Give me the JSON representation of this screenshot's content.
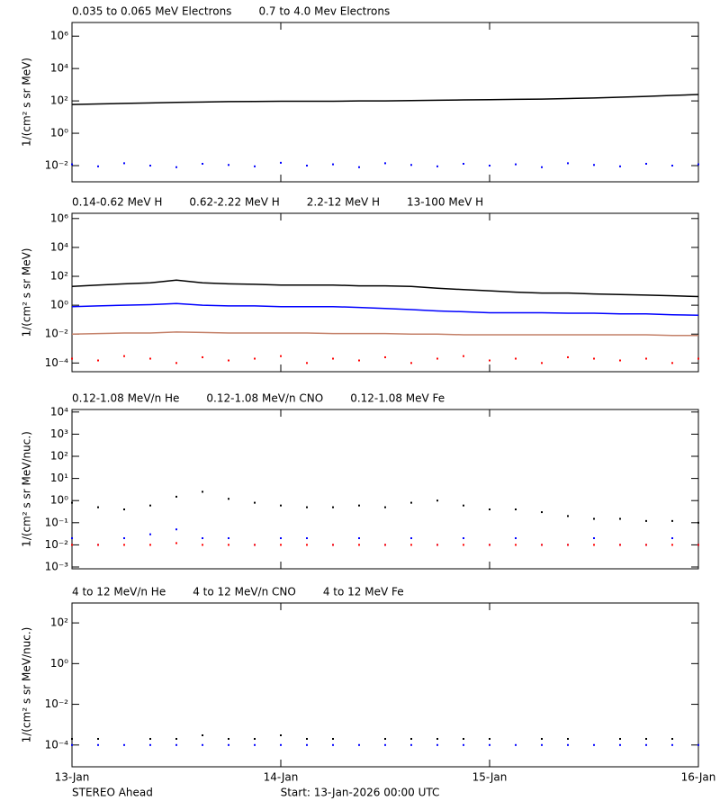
{
  "x_axis": {
    "xlim": [
      "2026-01-13T00:00",
      "2026-01-16T00:00"
    ],
    "xticks": [
      {
        "value": "2026-01-13T00:00",
        "label": "13-Jan"
      },
      {
        "value": "2026-01-14T00:00",
        "label": "14-Jan"
      },
      {
        "value": "2026-01-15T00:00",
        "label": "15-Jan"
      },
      {
        "value": "2026-01-16T00:00",
        "label": "16-Jan"
      }
    ]
  },
  "footer": {
    "left": "STEREO Ahead",
    "center": "Start: 13-Jan-2026 00:00 UTC"
  },
  "chart_data": [
    {
      "type": "line",
      "y_label": "1/(cm² s sr MeV)",
      "log_y": true,
      "ylim": [
        0.001,
        7000000
      ],
      "yticks": [
        {
          "value": 0.01,
          "label": "10⁻²"
        },
        {
          "value": 1,
          "label": "10⁰"
        },
        {
          "value": 100,
          "label": "10²"
        },
        {
          "value": 10000,
          "label": "10⁴"
        },
        {
          "value": 1000000,
          "label": "10⁶"
        }
      ],
      "x": [
        "2026-01-13T00:00",
        "2026-01-13T03:00",
        "2026-01-13T06:00",
        "2026-01-13T09:00",
        "2026-01-13T12:00",
        "2026-01-13T15:00",
        "2026-01-13T18:00",
        "2026-01-13T21:00",
        "2026-01-14T00:00",
        "2026-01-14T03:00",
        "2026-01-14T06:00",
        "2026-01-14T09:00",
        "2026-01-14T12:00",
        "2026-01-14T15:00",
        "2026-01-14T18:00",
        "2026-01-14T21:00",
        "2026-01-15T00:00",
        "2026-01-15T03:00",
        "2026-01-15T06:00",
        "2026-01-15T09:00",
        "2026-01-15T12:00",
        "2026-01-15T15:00",
        "2026-01-15T18:00",
        "2026-01-15T21:00",
        "2026-01-16T00:00"
      ],
      "series": [
        {
          "name": "0.035 to 0.065 MeV Electrons",
          "color": "#000000",
          "style": "line",
          "values": [
            60,
            65,
            70,
            75,
            80,
            85,
            90,
            92,
            95,
            95,
            95,
            100,
            100,
            105,
            110,
            115,
            120,
            125,
            130,
            140,
            150,
            170,
            190,
            220,
            250
          ]
        },
        {
          "name": "0.7 to 4.0 Mev Electrons",
          "color": "#0000ff",
          "style": "points",
          "values": [
            0.012,
            0.009,
            0.014,
            0.01,
            0.008,
            0.013,
            0.011,
            0.009,
            0.015,
            0.01,
            0.012,
            0.008,
            0.014,
            0.011,
            0.009,
            0.013,
            0.01,
            0.012,
            0.008,
            0.014,
            0.011,
            0.009,
            0.013,
            0.01,
            0.012
          ]
        }
      ]
    },
    {
      "type": "line",
      "y_label": "1/(cm² s sr MeV)",
      "log_y": true,
      "ylim": [
        2.5e-05,
        2300000
      ],
      "yticks": [
        {
          "value": 0.0001,
          "label": "10⁻⁴"
        },
        {
          "value": 0.01,
          "label": "10⁻²"
        },
        {
          "value": 1,
          "label": "10⁰"
        },
        {
          "value": 100,
          "label": "10²"
        },
        {
          "value": 10000,
          "label": "10⁴"
        },
        {
          "value": 1000000,
          "label": "10⁶"
        }
      ],
      "x": [
        "2026-01-13T00:00",
        "2026-01-13T03:00",
        "2026-01-13T06:00",
        "2026-01-13T09:00",
        "2026-01-13T12:00",
        "2026-01-13T15:00",
        "2026-01-13T18:00",
        "2026-01-13T21:00",
        "2026-01-14T00:00",
        "2026-01-14T03:00",
        "2026-01-14T06:00",
        "2026-01-14T09:00",
        "2026-01-14T12:00",
        "2026-01-14T15:00",
        "2026-01-14T18:00",
        "2026-01-14T21:00",
        "2026-01-15T00:00",
        "2026-01-15T03:00",
        "2026-01-15T06:00",
        "2026-01-15T09:00",
        "2026-01-15T12:00",
        "2026-01-15T15:00",
        "2026-01-15T18:00",
        "2026-01-15T21:00",
        "2026-01-16T00:00"
      ],
      "series": [
        {
          "name": "0.14-0.62 MeV H",
          "color": "#000000",
          "style": "line",
          "values": [
            20,
            25,
            30,
            35,
            55,
            35,
            30,
            28,
            25,
            25,
            25,
            22,
            22,
            20,
            15,
            12,
            10,
            8,
            7,
            7,
            6,
            5.5,
            5,
            4.5,
            4
          ]
        },
        {
          "name": "0.62-2.22 MeV H",
          "color": "#0000ff",
          "style": "line",
          "values": [
            0.8,
            0.9,
            1.0,
            1.1,
            1.3,
            1.0,
            0.9,
            0.9,
            0.8,
            0.8,
            0.8,
            0.7,
            0.6,
            0.5,
            0.4,
            0.35,
            0.3,
            0.3,
            0.3,
            0.28,
            0.28,
            0.25,
            0.25,
            0.22,
            0.2
          ]
        },
        {
          "name": "2.2-12 MeV H",
          "color": "#c48068",
          "style": "line",
          "values": [
            0.01,
            0.011,
            0.012,
            0.012,
            0.014,
            0.013,
            0.012,
            0.012,
            0.012,
            0.012,
            0.011,
            0.011,
            0.011,
            0.01,
            0.01,
            0.009,
            0.009,
            0.009,
            0.009,
            0.009,
            0.009,
            0.009,
            0.009,
            0.008,
            0.008
          ]
        },
        {
          "name": "13-100 MeV H",
          "color": "#ff0000",
          "style": "points",
          "values": [
            0.0002,
            0.00015,
            0.0003,
            0.0002,
            0.0001,
            0.00025,
            0.00015,
            0.0002,
            0.0003,
            0.0001,
            0.0002,
            0.00015,
            0.00025,
            0.0001,
            0.0002,
            0.0003,
            0.00015,
            0.0002,
            0.0001,
            0.00025,
            0.0002,
            0.00015,
            0.0002,
            0.0001,
            0.0002
          ]
        }
      ]
    },
    {
      "type": "line",
      "y_label": "1/(cm² s sr MeV/nuc.)",
      "log_y": true,
      "ylim": [
        0.00083,
        13000
      ],
      "yticks": [
        {
          "value": 0.001,
          "label": "10⁻³"
        },
        {
          "value": 0.01,
          "label": "10⁻²"
        },
        {
          "value": 0.1,
          "label": "10⁻¹"
        },
        {
          "value": 1,
          "label": "10⁰"
        },
        {
          "value": 10,
          "label": "10¹"
        },
        {
          "value": 100,
          "label": "10²"
        },
        {
          "value": 1000,
          "label": "10³"
        },
        {
          "value": 10000,
          "label": "10⁴"
        }
      ],
      "x": [
        "2026-01-13T00:00",
        "2026-01-13T03:00",
        "2026-01-13T06:00",
        "2026-01-13T09:00",
        "2026-01-13T12:00",
        "2026-01-13T15:00",
        "2026-01-13T18:00",
        "2026-01-13T21:00",
        "2026-01-14T00:00",
        "2026-01-14T03:00",
        "2026-01-14T06:00",
        "2026-01-14T09:00",
        "2026-01-14T12:00",
        "2026-01-14T15:00",
        "2026-01-14T18:00",
        "2026-01-14T21:00",
        "2026-01-15T00:00",
        "2026-01-15T03:00",
        "2026-01-15T06:00",
        "2026-01-15T09:00",
        "2026-01-15T12:00",
        "2026-01-15T15:00",
        "2026-01-15T18:00",
        "2026-01-15T21:00",
        "2026-01-16T00:00"
      ],
      "series": [
        {
          "name": "0.12-1.08 MeV/n He",
          "color": "#000000",
          "style": "points",
          "values": [
            0.8,
            0.5,
            0.4,
            0.6,
            1.5,
            2.5,
            1.2,
            0.8,
            0.6,
            0.5,
            0.5,
            0.6,
            0.5,
            0.8,
            1.0,
            0.6,
            0.4,
            0.4,
            0.3,
            0.2,
            0.15,
            0.15,
            0.12,
            0.12,
            0.1
          ]
        },
        {
          "name": "0.12-1.08 MeV/n CNO",
          "color": "#0000ff",
          "style": "points",
          "values": [
            0.02,
            0.01,
            0.02,
            0.03,
            0.05,
            0.02,
            0.02,
            0.01,
            0.02,
            0.02,
            0.01,
            0.02,
            0.01,
            0.02,
            0.01,
            0.02,
            0.01,
            0.02,
            0.01,
            0.01,
            0.02,
            0.01,
            0.01,
            0.02,
            0.01
          ]
        },
        {
          "name": "0.12-1.08 MeV Fe",
          "color": "#ff0000",
          "style": "points",
          "values": [
            0.01,
            0.01,
            0.01,
            0.01,
            0.012,
            0.01,
            0.01,
            0.01,
            0.01,
            0.01,
            0.01,
            0.01,
            0.01,
            0.01,
            0.01,
            0.01,
            0.01,
            0.01,
            0.01,
            0.01,
            0.01,
            0.01,
            0.01,
            0.01,
            0.01
          ]
        }
      ]
    },
    {
      "type": "line",
      "y_label": "1/(cm² s sr MeV/nuc.)",
      "log_y": true,
      "ylim": [
        8.5e-06,
        950
      ],
      "yticks": [
        {
          "value": 0.0001,
          "label": "10⁻⁴"
        },
        {
          "value": 0.01,
          "label": "10⁻²"
        },
        {
          "value": 1,
          "label": "10⁰"
        },
        {
          "value": 100,
          "label": "10²"
        }
      ],
      "x": [
        "2026-01-13T00:00",
        "2026-01-13T03:00",
        "2026-01-13T06:00",
        "2026-01-13T09:00",
        "2026-01-13T12:00",
        "2026-01-13T15:00",
        "2026-01-13T18:00",
        "2026-01-13T21:00",
        "2026-01-14T00:00",
        "2026-01-14T03:00",
        "2026-01-14T06:00",
        "2026-01-14T09:00",
        "2026-01-14T12:00",
        "2026-01-14T15:00",
        "2026-01-14T18:00",
        "2026-01-14T21:00",
        "2026-01-15T00:00",
        "2026-01-15T03:00",
        "2026-01-15T06:00",
        "2026-01-15T09:00",
        "2026-01-15T12:00",
        "2026-01-15T15:00",
        "2026-01-15T18:00",
        "2026-01-15T21:00",
        "2026-01-16T00:00"
      ],
      "series": [
        {
          "name": "4 to 12 MeV/n He",
          "color": "#000000",
          "style": "points",
          "values": [
            0.0002,
            0.0002,
            null,
            0.0002,
            0.0002,
            0.0003,
            0.0002,
            0.0002,
            0.0003,
            0.0002,
            0.0002,
            null,
            0.0002,
            0.0002,
            0.0002,
            0.0002,
            0.0002,
            null,
            0.0002,
            0.0002,
            null,
            0.0002,
            0.0002,
            0.0002,
            null
          ]
        },
        {
          "name": "4 to 12 MeV/n CNO",
          "color": "#0000ff",
          "style": "points",
          "values": [
            0.0001,
            0.0001,
            0.0001,
            0.0001,
            0.0001,
            0.0001,
            0.0001,
            0.0001,
            0.0001,
            0.0001,
            0.0001,
            0.0001,
            0.0001,
            0.0001,
            0.0001,
            0.0001,
            0.0001,
            0.0001,
            0.0001,
            0.0001,
            0.0001,
            0.0001,
            0.0001,
            0.0001,
            0.0001
          ]
        },
        {
          "name": "4 to 12 MeV Fe",
          "color": "#ff0000",
          "style": "points",
          "values": [
            null,
            null,
            null,
            null,
            null,
            null,
            null,
            null,
            null,
            null,
            null,
            null,
            null,
            null,
            null,
            null,
            null,
            null,
            null,
            null,
            null,
            null,
            null,
            null,
            null
          ]
        }
      ]
    }
  ]
}
